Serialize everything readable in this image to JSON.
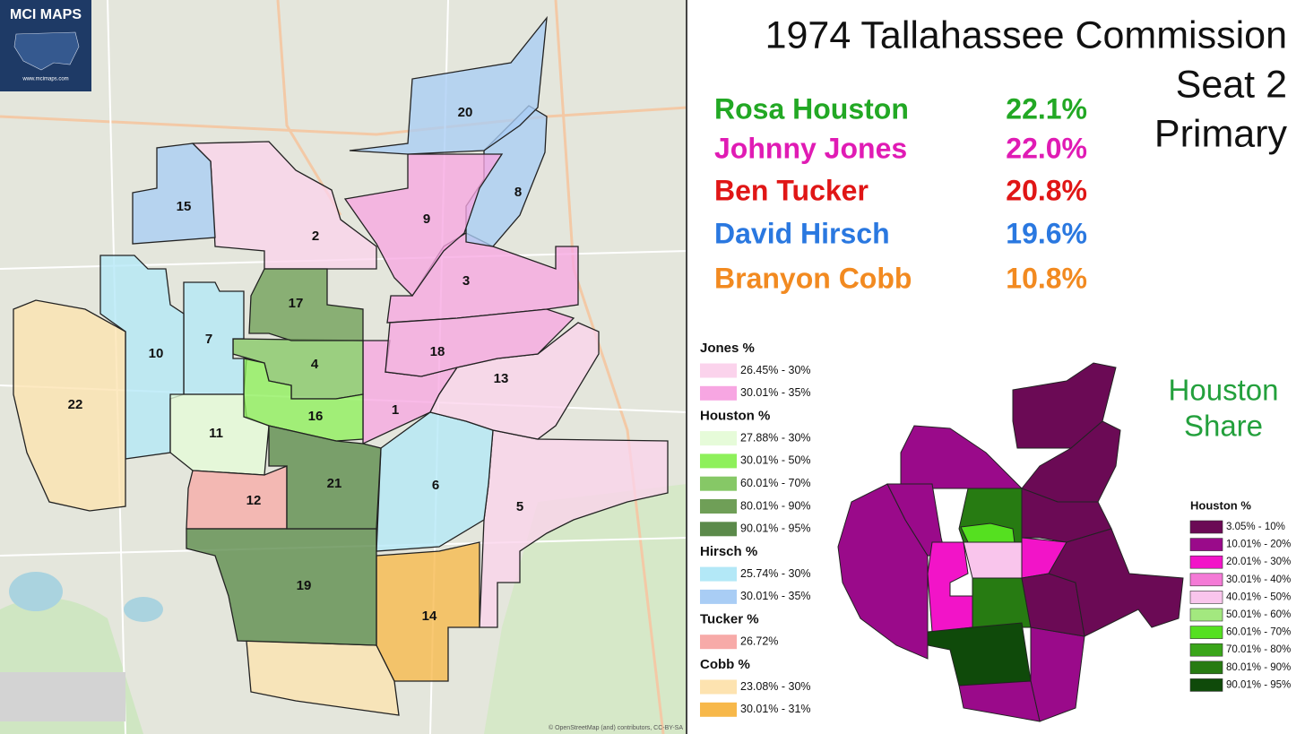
{
  "logo": {
    "title": "MCI MAPS",
    "url": "www.mcimaps.com"
  },
  "header": {
    "title_lines": [
      "1974 Tallahassee Commission",
      "Seat 2",
      "Primary"
    ]
  },
  "results": [
    {
      "name": "Rosa Houston",
      "share": "22.1%",
      "color": "#22a824"
    },
    {
      "name": "Johnny Jones",
      "share": "22.0%",
      "color": "#e01bb4"
    },
    {
      "name": "Ben Tucker",
      "share": "20.8%",
      "color": "#e01616"
    },
    {
      "name": "David Hirsch",
      "share": "19.6%",
      "color": "#2a78e0"
    },
    {
      "name": "Branyon Cobb",
      "share": "10.8%",
      "color": "#f28a20"
    }
  ],
  "legend": {
    "groups": [
      {
        "title": "Jones  %",
        "items": [
          {
            "label": "26.45% - 30%",
            "color": "#fbd3ec"
          },
          {
            "label": "30.01% - 35%",
            "color": "#f7a6e2"
          }
        ]
      },
      {
        "title": "Houston %",
        "items": [
          {
            "label": "27.88% - 30%",
            "color": "#e6fbd9"
          },
          {
            "label": "30.01% - 50%",
            "color": "#8ef05b"
          },
          {
            "label": "60.01% - 70%",
            "color": "#86c866"
          },
          {
            "label": "80.01% - 90%",
            "color": "#6f9f57"
          },
          {
            "label": "90.01% - 95%",
            "color": "#5b8a4a"
          }
        ]
      },
      {
        "title": "Hirsch  %",
        "items": [
          {
            "label": "25.74% - 30%",
            "color": "#b3e8f7"
          },
          {
            "label": "30.01% - 35%",
            "color": "#a9cdf5"
          }
        ]
      },
      {
        "title": "Tucker  %",
        "items": [
          {
            "label": "26.72%",
            "color": "#f7aaa8"
          }
        ]
      },
      {
        "title": "Cobb  %",
        "items": [
          {
            "label": "23.08% - 30%",
            "color": "#fde3b0"
          },
          {
            "label": "30.01% - 31%",
            "color": "#f7b84a"
          }
        ]
      }
    ]
  },
  "precincts": [
    {
      "label": "1",
      "color": "#f7a6e2"
    },
    {
      "label": "2",
      "color": "#fbd3ec"
    },
    {
      "label": "3",
      "color": "#f7a6e2"
    },
    {
      "label": "4",
      "color": "#86c866"
    },
    {
      "label": "5",
      "color": "#fbd3ec"
    },
    {
      "label": "6",
      "color": "#b3e8f7"
    },
    {
      "label": "7",
      "color": "#b3e8f7"
    },
    {
      "label": "8",
      "color": "#a9cdf5"
    },
    {
      "label": "9",
      "color": "#f7a6e2"
    },
    {
      "label": "10",
      "color": "#b3e8f7"
    },
    {
      "label": "11",
      "color": "#e6fbd9"
    },
    {
      "label": "12",
      "color": "#f7aaa8"
    },
    {
      "label": "13",
      "color": "#fbd3ec"
    },
    {
      "label": "14",
      "color": "#f7b84a"
    },
    {
      "label": "15",
      "color": "#a9cdf5"
    },
    {
      "label": "16",
      "color": "#8ef05b"
    },
    {
      "label": "17",
      "color": "#6f9f57"
    },
    {
      "label": "18",
      "color": "#f7a6e2"
    },
    {
      "label": "19",
      "color": "#5b8a4a"
    },
    {
      "label": "20",
      "color": "#a9cdf5"
    },
    {
      "label": "21",
      "color": "#5b8a4a"
    },
    {
      "label": "22",
      "color": "#fde3b0"
    }
  ],
  "inset": {
    "title_lines": [
      "Houston",
      "Share"
    ],
    "title_color": "#23a03c",
    "legend_title": "Houston  %",
    "items": [
      {
        "label": "3.05% - 10%",
        "color": "#6b0a55"
      },
      {
        "label": "10.01% - 20%",
        "color": "#9a0a8a"
      },
      {
        "label": "20.01% - 30%",
        "color": "#f214c8"
      },
      {
        "label": "30.01% - 40%",
        "color": "#f47ad6"
      },
      {
        "label": "40.01% - 50%",
        "color": "#f9c5ec"
      },
      {
        "label": "50.01% - 60%",
        "color": "#a3e87f"
      },
      {
        "label": "60.01% - 70%",
        "color": "#55e020"
      },
      {
        "label": "70.01% - 80%",
        "color": "#3aa51a"
      },
      {
        "label": "80.01% - 90%",
        "color": "#277b12"
      },
      {
        "label": "90.01% - 95%",
        "color": "#0f4a0a"
      }
    ]
  },
  "attribution": "© OpenStreetMap (and) contributors, CC-BY-SA"
}
